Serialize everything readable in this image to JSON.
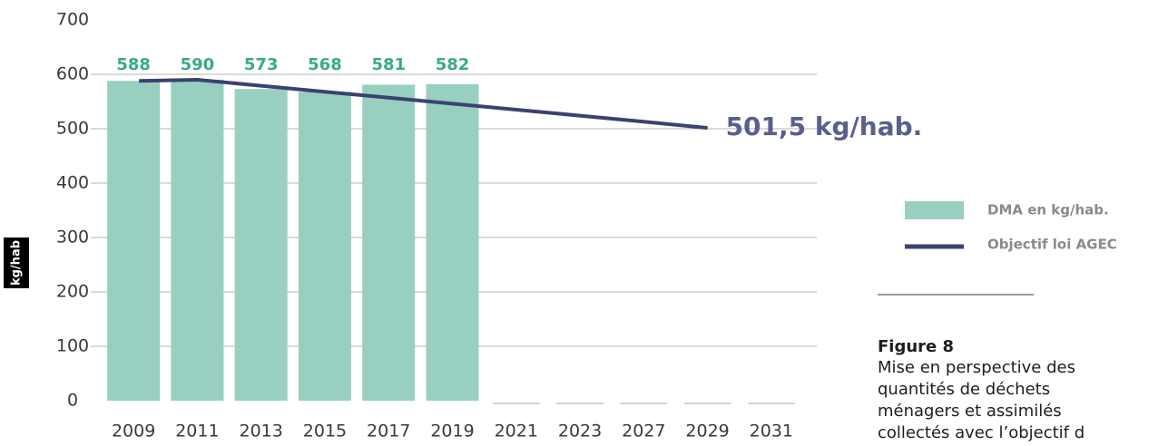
{
  "chart_data": {
    "type": "bar",
    "y_label": "kg/hab",
    "categories": [
      "2009",
      "2011",
      "2013",
      "2015",
      "2017",
      "2019",
      "2021",
      "2023",
      "2027",
      "2029",
      "2031"
    ],
    "series": [
      {
        "name": "DMA en kg/hab.",
        "color": "#98cfc0",
        "type": "bar",
        "values": [
          588,
          590,
          573,
          568,
          581,
          582,
          null,
          null,
          null,
          null,
          null
        ]
      },
      {
        "name": "Objectif loi AGEC",
        "color": "#3b4170",
        "type": "line",
        "values": [
          588,
          590,
          579,
          568,
          557,
          546,
          535,
          524,
          513,
          501.5,
          null
        ]
      }
    ],
    "annotations": [
      {
        "text": "501,5 kg/hab."
      }
    ],
    "ylim": [
      0,
      700
    ],
    "yticks": [
      0,
      100,
      200,
      300,
      400,
      500,
      600,
      700
    ],
    "grid": true,
    "legend": "right",
    "figure_title": "Figure 8",
    "caption_lines": [
      "Mise en perspective des",
      "quantités de déchets",
      "ménagers et assimilés",
      "collectés avec l’objectif d"
    ]
  }
}
